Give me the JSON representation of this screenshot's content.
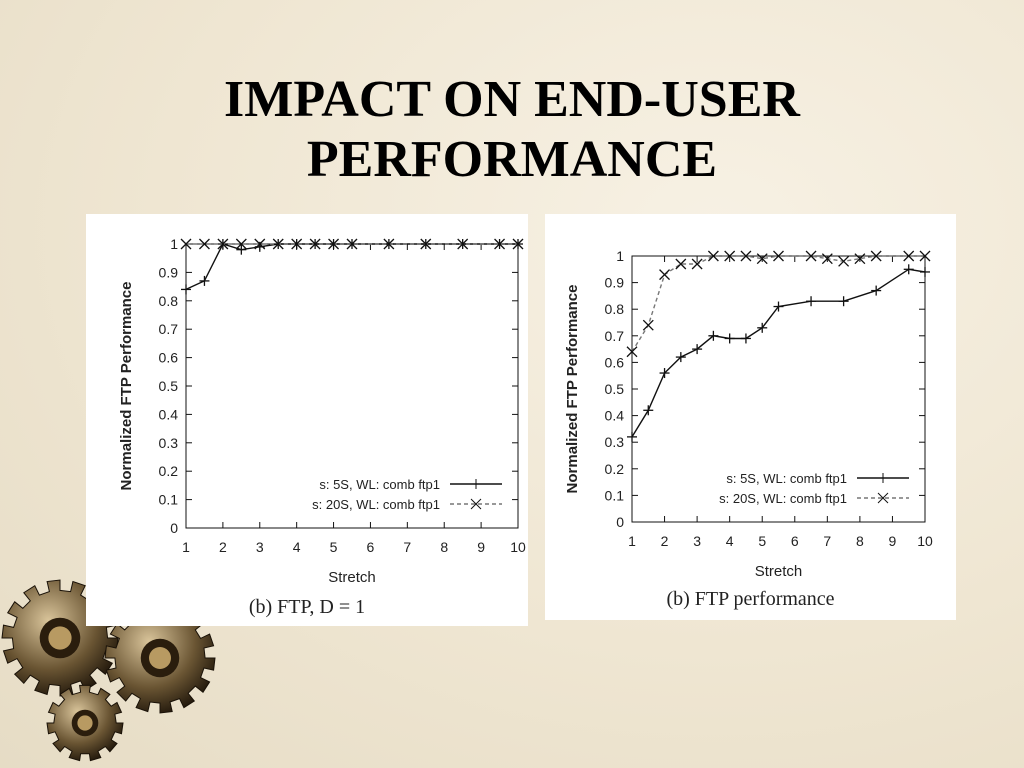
{
  "slide": {
    "title_line1": "IMPACT ON END-USER",
    "title_line2": "PERFORMANCE"
  },
  "colors": {
    "background": "#efe6d2",
    "panel": "#ffffff",
    "line": "#111111",
    "dashed_line": "#777777"
  },
  "decoration": {
    "icon": "gears-icon"
  },
  "chart_data": [
    {
      "type": "line",
      "caption": "(b) FTP, D = 1",
      "xlabel": "Stretch",
      "ylabel": "Normalized FTP Performance",
      "xlim": [
        1,
        10
      ],
      "ylim": [
        0,
        1
      ],
      "xticks": [
        1,
        2,
        3,
        4,
        5,
        6,
        7,
        8,
        9,
        10
      ],
      "yticks": [
        0,
        0.1,
        0.2,
        0.3,
        0.4,
        0.5,
        0.6,
        0.7,
        0.8,
        0.9,
        1
      ],
      "grid": false,
      "legend_position": "bottom-right",
      "series": [
        {
          "name": "s: 5S, WL: comb ftp1",
          "style": "solid",
          "marker": "+",
          "x": [
            1,
            1.5,
            2,
            2.5,
            3,
            3.5,
            4,
            4.5,
            5,
            5.5,
            6.5,
            7.5,
            8.5,
            9.5,
            10
          ],
          "y": [
            0.84,
            0.87,
            1.0,
            0.98,
            0.99,
            1.0,
            1.0,
            1.0,
            1.0,
            1.0,
            1.0,
            1.0,
            1.0,
            1.0,
            1.0
          ]
        },
        {
          "name": "s: 20S, WL: comb ftp1",
          "style": "dashed",
          "marker": "x",
          "x": [
            1,
            1.5,
            2,
            2.5,
            3,
            3.5,
            4,
            4.5,
            5,
            5.5,
            6.5,
            7.5,
            8.5,
            9.5,
            10
          ],
          "y": [
            1.0,
            1.0,
            1.0,
            1.0,
            1.0,
            1.0,
            1.0,
            1.0,
            1.0,
            1.0,
            1.0,
            1.0,
            1.0,
            1.0,
            1.0
          ]
        }
      ]
    },
    {
      "type": "line",
      "caption": "(b) FTP performance",
      "xlabel": "Stretch",
      "ylabel": "Normalized FTP Performance",
      "xlim": [
        1,
        10
      ],
      "ylim": [
        0,
        1
      ],
      "xticks": [
        1,
        2,
        3,
        4,
        5,
        6,
        7,
        8,
        9,
        10
      ],
      "yticks": [
        0,
        0.1,
        0.2,
        0.3,
        0.4,
        0.5,
        0.6,
        0.7,
        0.8,
        0.9,
        1
      ],
      "grid": false,
      "legend_position": "bottom-right",
      "series": [
        {
          "name": "s: 5S, WL: comb ftp1",
          "style": "solid",
          "marker": "+",
          "x": [
            1,
            1.5,
            2,
            2.5,
            3,
            3.5,
            4,
            4.5,
            5,
            5.5,
            6.5,
            7.5,
            8.5,
            9.5,
            10
          ],
          "y": [
            0.32,
            0.42,
            0.56,
            0.62,
            0.65,
            0.7,
            0.69,
            0.69,
            0.73,
            0.81,
            0.83,
            0.83,
            0.87,
            0.95,
            0.94
          ]
        },
        {
          "name": "s: 20S, WL: comb ftp1",
          "style": "dashed",
          "marker": "x",
          "x": [
            1,
            1.5,
            2,
            2.5,
            3,
            3.5,
            4,
            4.5,
            5,
            5.5,
            6.5,
            7,
            7.5,
            8,
            8.5,
            9.5,
            10
          ],
          "y": [
            0.64,
            0.74,
            0.93,
            0.97,
            0.97,
            1.0,
            1.0,
            1.0,
            0.99,
            1.0,
            1.0,
            0.99,
            0.98,
            0.99,
            1.0,
            1.0,
            1.0
          ]
        }
      ]
    }
  ]
}
